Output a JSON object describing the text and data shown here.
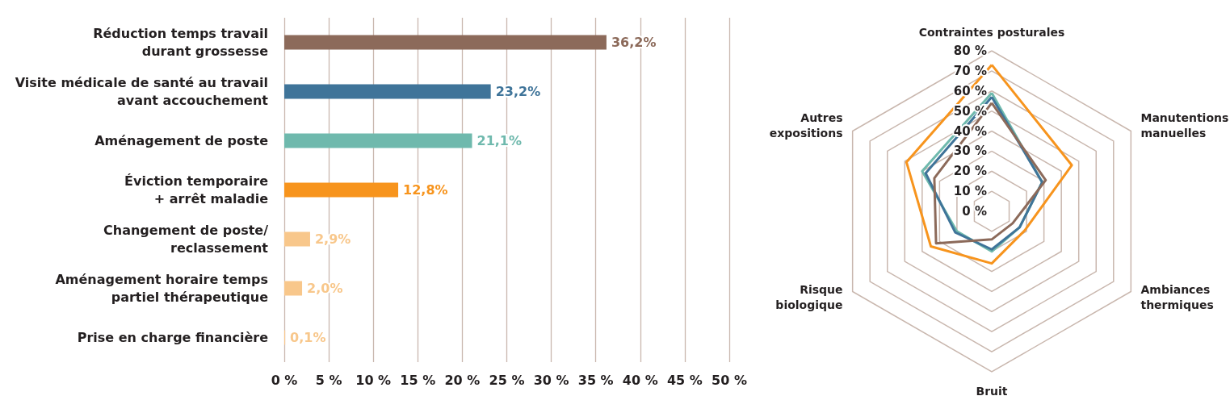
{
  "chart_data": [
    {
      "type": "bar",
      "orientation": "horizontal",
      "categories": [
        "Réduction temps travail\ndurant grossesse",
        "Visite médicale de santé au travail\navant accouchement",
        "Aménagement de poste",
        "Éviction temporaire\n+ arrêt maladie",
        "Changement de poste/\nreclassement",
        "Aménagement horaire temps\npartiel thérapeutique",
        "Prise en charge financière"
      ],
      "values": [
        36.2,
        23.2,
        21.1,
        12.8,
        2.9,
        2.0,
        0.1
      ],
      "colors": [
        "#8c6a5a",
        "#3f7499",
        "#6fb9ad",
        "#f7941d",
        "#f8c78b",
        "#f8c78b",
        "#f8c78b"
      ],
      "value_labels": [
        "36,2%",
        "23,2%",
        "21,1%",
        "12,8%",
        "2,9%",
        "2,0%",
        "0,1%"
      ],
      "xlim": [
        0,
        50
      ],
      "xticks": [
        {
          "value": 0,
          "label": "0 %"
        },
        {
          "value": 5,
          "label": "5 %"
        },
        {
          "value": 10,
          "label": "10 %"
        },
        {
          "value": 15,
          "label": "15 %"
        },
        {
          "value": 20,
          "label": "20 %"
        },
        {
          "value": 25,
          "label": "25 %"
        },
        {
          "value": 30,
          "label": "30 %"
        },
        {
          "value": 35,
          "label": "35 %"
        },
        {
          "value": 40,
          "label": "40 %"
        },
        {
          "value": 45,
          "label": "45 %"
        },
        {
          "value": 50,
          "label": "50 %"
        }
      ],
      "grid": "x"
    },
    {
      "type": "radar",
      "categories": [
        "Contraintes posturales",
        "Manutentions\nmanuelles",
        "Ambiances\nthermiques",
        "Bruit",
        "Risque\nbiologique",
        "Autres\nexpositions"
      ],
      "series": [
        {
          "color": "#f7941d",
          "values": [
            73,
            46,
            19,
            26,
            35,
            49
          ]
        },
        {
          "color": "#6fb9ad",
          "values": [
            59,
            29,
            16,
            20,
            20,
            40
          ]
        },
        {
          "color": "#3f7499",
          "values": [
            57,
            29,
            16,
            19,
            21,
            38
          ]
        },
        {
          "color": "#8c6a5a",
          "values": [
            54,
            31,
            12,
            14,
            32,
            33
          ]
        }
      ],
      "ylim": [
        0,
        80
      ],
      "yticks": [
        {
          "value": 0,
          "label": "0 %"
        },
        {
          "value": 10,
          "label": "10 %"
        },
        {
          "value": 20,
          "label": "20 %"
        },
        {
          "value": 30,
          "label": "30 %"
        },
        {
          "value": 40,
          "label": "40 %"
        },
        {
          "value": 50,
          "label": "50 %"
        },
        {
          "value": 60,
          "label": "60 %"
        },
        {
          "value": 70,
          "label": "70 %"
        },
        {
          "value": 80,
          "label": "80 %"
        }
      ],
      "marker": "none",
      "line_style": "solid"
    }
  ]
}
